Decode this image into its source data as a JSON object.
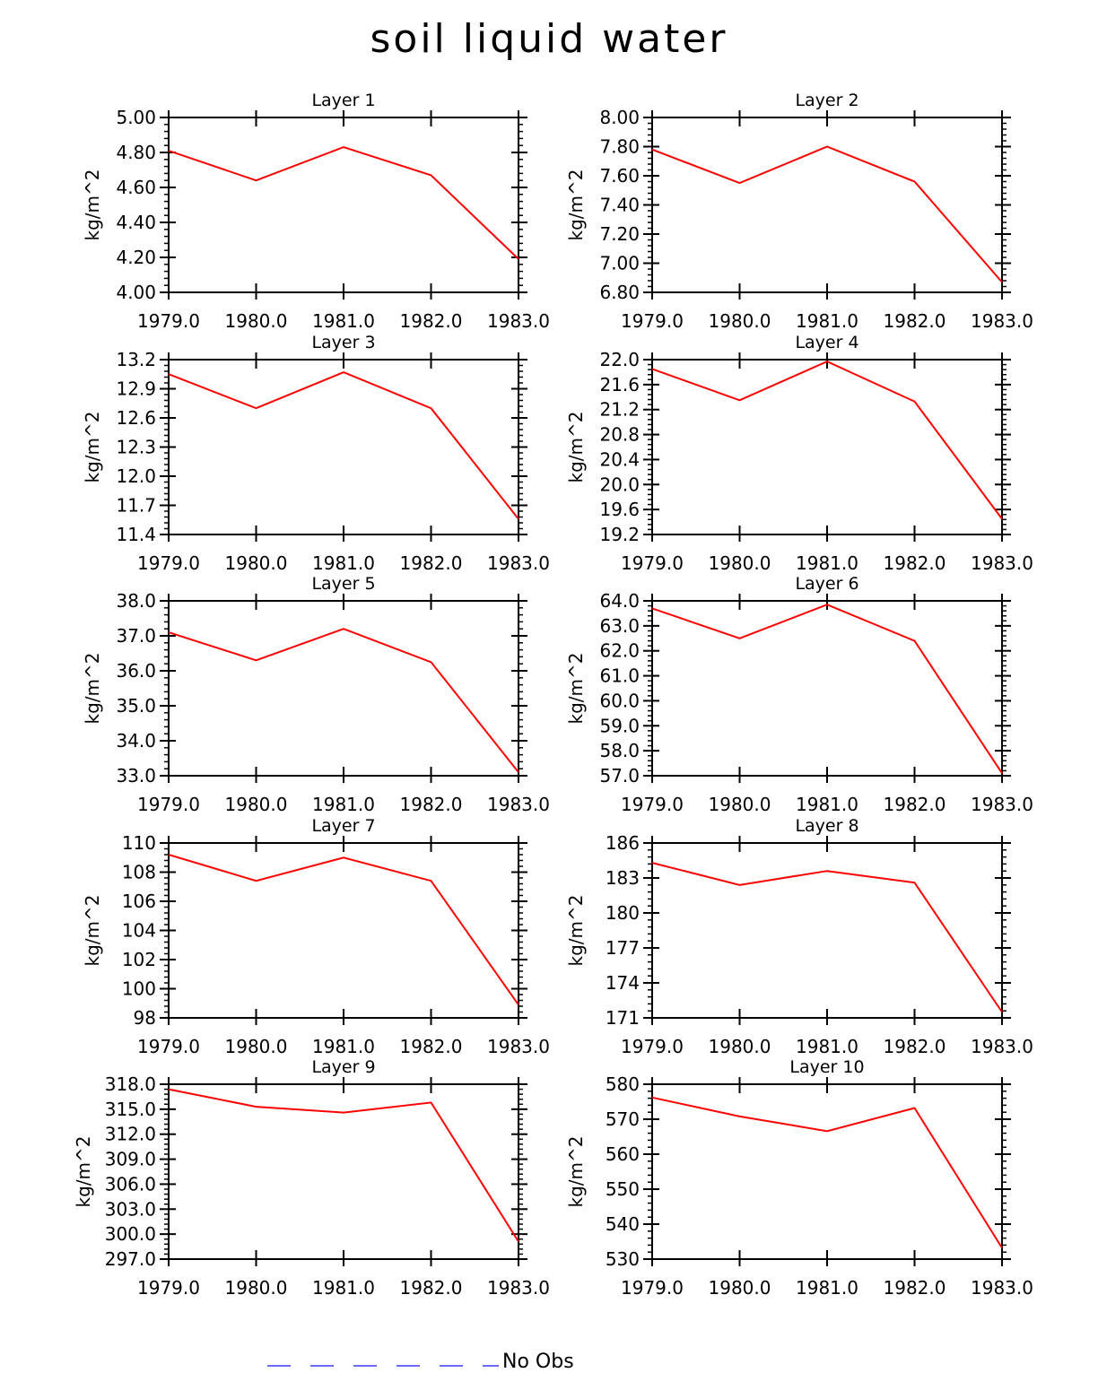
{
  "title": "soil liquid water",
  "legend": {
    "label": "No Obs",
    "color": "#6a6aff"
  },
  "line_color": "#ff0000",
  "chart_data": [
    {
      "type": "line",
      "title": "Layer 1",
      "ylabel": "kg/m^2",
      "x": [
        1979.0,
        1980.0,
        1981.0,
        1982.0,
        1983.0
      ],
      "xticks": [
        "1979.0",
        "1980.0",
        "1981.0",
        "1982.0",
        "1983.0"
      ],
      "ylim": [
        4.0,
        5.0
      ],
      "yticks": [
        "4.00",
        "4.20",
        "4.40",
        "4.60",
        "4.80",
        "5.00"
      ],
      "series": [
        {
          "name": "soil liquid water",
          "values": [
            4.81,
            4.64,
            4.83,
            4.67,
            4.19
          ]
        }
      ]
    },
    {
      "type": "line",
      "title": "Layer 2",
      "ylabel": "kg/m^2",
      "x": [
        1979.0,
        1980.0,
        1981.0,
        1982.0,
        1983.0
      ],
      "xticks": [
        "1979.0",
        "1980.0",
        "1981.0",
        "1982.0",
        "1983.0"
      ],
      "ylim": [
        6.8,
        8.0
      ],
      "yticks": [
        "6.80",
        "7.00",
        "7.20",
        "7.40",
        "7.60",
        "7.80",
        "8.00"
      ],
      "series": [
        {
          "name": "soil liquid water",
          "values": [
            7.78,
            7.55,
            7.8,
            7.56,
            6.87
          ]
        }
      ]
    },
    {
      "type": "line",
      "title": "Layer 3",
      "ylabel": "kg/m^2",
      "x": [
        1979.0,
        1980.0,
        1981.0,
        1982.0,
        1983.0
      ],
      "xticks": [
        "1979.0",
        "1980.0",
        "1981.0",
        "1982.0",
        "1983.0"
      ],
      "ylim": [
        11.4,
        13.2
      ],
      "yticks": [
        "11.4",
        "11.7",
        "12.0",
        "12.3",
        "12.6",
        "12.9",
        "13.2"
      ],
      "series": [
        {
          "name": "soil liquid water",
          "values": [
            13.05,
            12.7,
            13.07,
            12.7,
            11.56
          ]
        }
      ]
    },
    {
      "type": "line",
      "title": "Layer 4",
      "ylabel": "kg/m^2",
      "x": [
        1979.0,
        1980.0,
        1981.0,
        1982.0,
        1983.0
      ],
      "xticks": [
        "1979.0",
        "1980.0",
        "1981.0",
        "1982.0",
        "1983.0"
      ],
      "ylim": [
        19.2,
        22.0
      ],
      "yticks": [
        "19.2",
        "19.6",
        "20.0",
        "20.4",
        "20.8",
        "21.2",
        "21.6",
        "22.0"
      ],
      "series": [
        {
          "name": "soil liquid water",
          "values": [
            21.85,
            21.35,
            21.97,
            21.33,
            19.45
          ]
        }
      ]
    },
    {
      "type": "line",
      "title": "Layer 5",
      "ylabel": "kg/m^2",
      "x": [
        1979.0,
        1980.0,
        1981.0,
        1982.0,
        1983.0
      ],
      "xticks": [
        "1979.0",
        "1980.0",
        "1981.0",
        "1982.0",
        "1983.0"
      ],
      "ylim": [
        33.0,
        38.0
      ],
      "yticks": [
        "33.0",
        "34.0",
        "35.0",
        "36.0",
        "37.0",
        "38.0"
      ],
      "series": [
        {
          "name": "soil liquid water",
          "values": [
            37.1,
            36.3,
            37.2,
            36.25,
            33.1
          ]
        }
      ]
    },
    {
      "type": "line",
      "title": "Layer 6",
      "ylabel": "kg/m^2",
      "x": [
        1979.0,
        1980.0,
        1981.0,
        1982.0,
        1983.0
      ],
      "xticks": [
        "1979.0",
        "1980.0",
        "1981.0",
        "1982.0",
        "1983.0"
      ],
      "ylim": [
        57.0,
        64.0
      ],
      "yticks": [
        "57.0",
        "58.0",
        "59.0",
        "60.0",
        "61.0",
        "62.0",
        "63.0",
        "64.0"
      ],
      "series": [
        {
          "name": "soil liquid water",
          "values": [
            63.7,
            62.5,
            63.85,
            62.4,
            57.1
          ]
        }
      ]
    },
    {
      "type": "line",
      "title": "Layer 7",
      "ylabel": "kg/m^2",
      "x": [
        1979.0,
        1980.0,
        1981.0,
        1982.0,
        1983.0
      ],
      "xticks": [
        "1979.0",
        "1980.0",
        "1981.0",
        "1982.0",
        "1983.0"
      ],
      "ylim": [
        98,
        110
      ],
      "yticks": [
        "98",
        "100",
        "102",
        "104",
        "106",
        "108",
        "110"
      ],
      "series": [
        {
          "name": "soil liquid water",
          "values": [
            109.2,
            107.4,
            109.0,
            107.4,
            98.9
          ]
        }
      ]
    },
    {
      "type": "line",
      "title": "Layer 8",
      "ylabel": "kg/m^2",
      "x": [
        1979.0,
        1980.0,
        1981.0,
        1982.0,
        1983.0
      ],
      "xticks": [
        "1979.0",
        "1980.0",
        "1981.0",
        "1982.0",
        "1983.0"
      ],
      "ylim": [
        171,
        186
      ],
      "yticks": [
        "171",
        "174",
        "177",
        "180",
        "183",
        "186"
      ],
      "series": [
        {
          "name": "soil liquid water",
          "values": [
            184.3,
            182.4,
            183.6,
            182.6,
            171.5
          ]
        }
      ]
    },
    {
      "type": "line",
      "title": "Layer 9",
      "ylabel": "kg/m^2",
      "x": [
        1979.0,
        1980.0,
        1981.0,
        1982.0,
        1983.0
      ],
      "xticks": [
        "1979.0",
        "1980.0",
        "1981.0",
        "1982.0",
        "1983.0"
      ],
      "ylim": [
        297.0,
        318.0
      ],
      "yticks": [
        "297.0",
        "300.0",
        "303.0",
        "306.0",
        "309.0",
        "312.0",
        "315.0",
        "318.0"
      ],
      "series": [
        {
          "name": "soil liquid water",
          "values": [
            317.4,
            315.3,
            314.6,
            315.8,
            299.1
          ]
        }
      ]
    },
    {
      "type": "line",
      "title": "Layer 10",
      "ylabel": "kg/m^2",
      "x": [
        1979.0,
        1980.0,
        1981.0,
        1982.0,
        1983.0
      ],
      "xticks": [
        "1979.0",
        "1980.0",
        "1981.0",
        "1982.0",
        "1983.0"
      ],
      "ylim": [
        530,
        580
      ],
      "yticks": [
        "530",
        "540",
        "550",
        "560",
        "570",
        "580"
      ],
      "series": [
        {
          "name": "soil liquid water",
          "values": [
            576.2,
            570.8,
            566.6,
            573.2,
            533.2
          ]
        }
      ]
    }
  ]
}
